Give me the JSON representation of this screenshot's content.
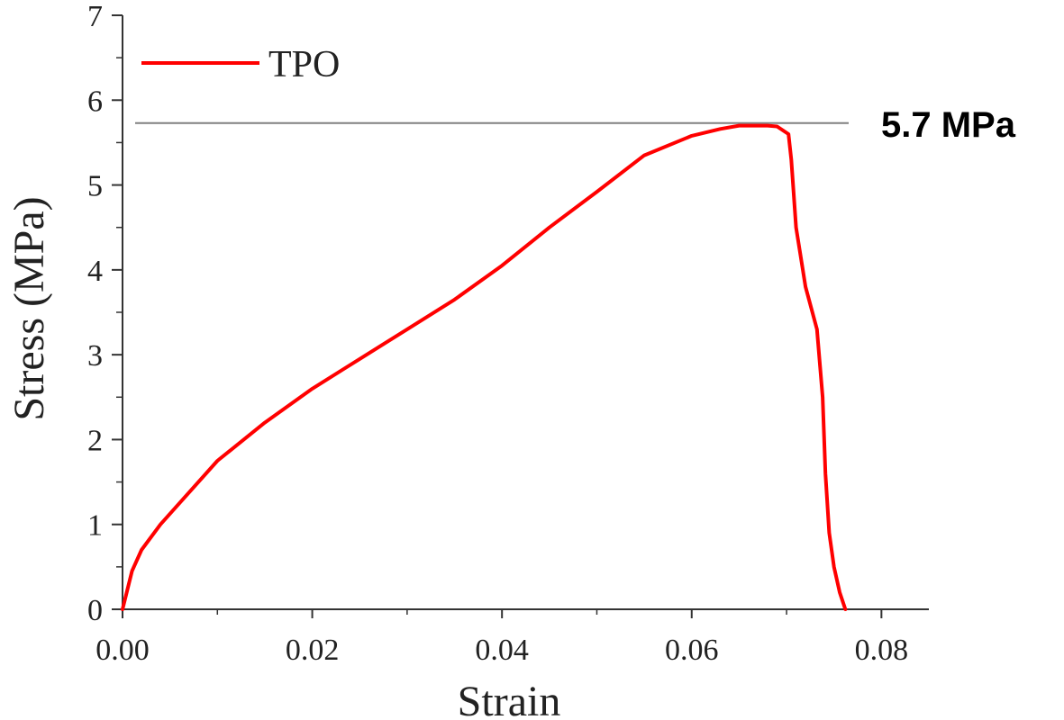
{
  "chart_data": {
    "type": "line",
    "xlabel": "Strain",
    "ylabel": "Stress (MPa)",
    "xlim": [
      0,
      0.085
    ],
    "ylim": [
      0,
      7
    ],
    "x_ticks": [
      0.0,
      0.02,
      0.04,
      0.06,
      0.08
    ],
    "x_tick_labels": [
      "0.00",
      "0.02",
      "0.04",
      "0.06",
      "0.08"
    ],
    "y_ticks": [
      0,
      1,
      2,
      3,
      4,
      5,
      6,
      7
    ],
    "y_tick_labels": [
      "0",
      "1",
      "2",
      "3",
      "4",
      "5",
      "6",
      "7"
    ],
    "grid": false,
    "legend_position": "top-left",
    "series": [
      {
        "name": "TPO",
        "color": "#ff0000",
        "x": [
          0.0,
          0.001,
          0.002,
          0.004,
          0.006,
          0.01,
          0.015,
          0.02,
          0.025,
          0.03,
          0.035,
          0.04,
          0.045,
          0.05,
          0.055,
          0.06,
          0.063,
          0.065,
          0.068,
          0.069,
          0.0702,
          0.0705,
          0.071,
          0.072,
          0.0732,
          0.0738,
          0.0741,
          0.0745,
          0.075,
          0.0756,
          0.0762
        ],
        "y": [
          0.0,
          0.45,
          0.7,
          1.0,
          1.25,
          1.75,
          2.2,
          2.6,
          2.95,
          3.3,
          3.65,
          4.05,
          4.5,
          4.92,
          5.35,
          5.58,
          5.66,
          5.7,
          5.7,
          5.69,
          5.6,
          5.3,
          4.5,
          3.8,
          3.3,
          2.5,
          1.6,
          0.9,
          0.5,
          0.2,
          0.0
        ]
      }
    ],
    "annotations": [
      {
        "type": "hline",
        "y": 5.73,
        "color": "#808080",
        "label": "5.7 MPa"
      }
    ]
  }
}
